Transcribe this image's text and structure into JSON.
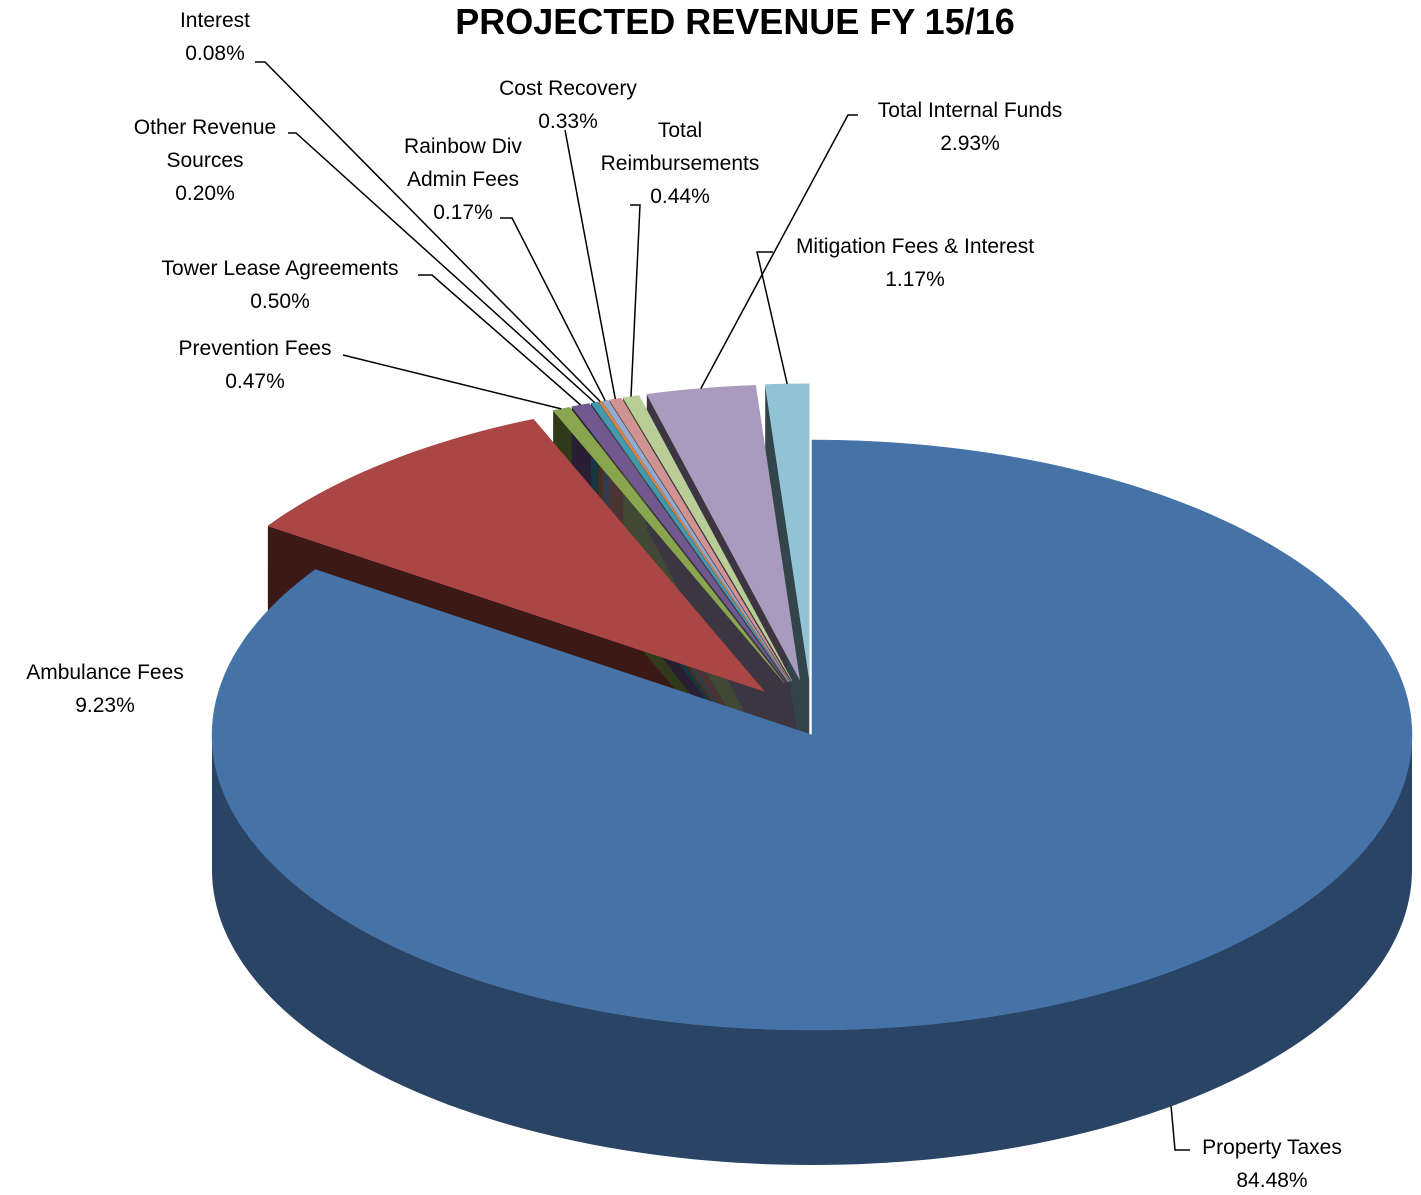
{
  "chart_data": {
    "type": "pie",
    "title": "PROJECTED REVENUE FY 15/16",
    "categories": [
      "Property Taxes",
      "Ambulance Fees",
      "Prevention Fees",
      "Tower Lease Agreements",
      "Other Revenue Sources",
      "Interest",
      "Rainbow Div Admin Fees",
      "Cost Recovery",
      "Total Reimbursements",
      "Total Internal Funds",
      "Mitigation Fees & Interest"
    ],
    "values": [
      84.48,
      9.23,
      0.47,
      0.5,
      0.2,
      0.08,
      0.17,
      0.33,
      0.44,
      2.93,
      1.17
    ],
    "value_labels": [
      "84.48%",
      "9.23%",
      "0.47%",
      "0.50%",
      "0.20%",
      "0.08%",
      "0.17%",
      "0.33%",
      "0.44%",
      "2.93%",
      "1.17%"
    ],
    "colors": [
      "#4572a7",
      "#aa4643",
      "#89a54e",
      "#71588f",
      "#4198af",
      "#db843d",
      "#93a9cf",
      "#d19392",
      "#b9cd96",
      "#a99bbd",
      "#92c3d4"
    ]
  }
}
